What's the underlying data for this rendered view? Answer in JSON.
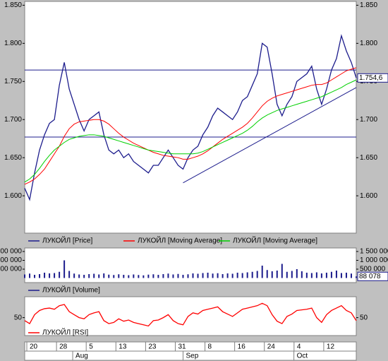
{
  "chart_data": [
    {
      "type": "line",
      "ylim": [
        1551,
        1855
      ],
      "yticks": [
        {
          "value": 1600,
          "label": "1.600"
        },
        {
          "value": 1650,
          "label": "1.650"
        },
        {
          "value": 1700,
          "label": "1.700"
        },
        {
          "value": 1750,
          "label": "1.750"
        },
        {
          "value": 1800,
          "label": "1.800"
        },
        {
          "value": 1850,
          "label": "1.850"
        }
      ],
      "series": [
        {
          "name": "ЛУКОЙЛ [Price]",
          "color": "#1c1c8c",
          "values": [
            1610,
            1595,
            1630,
            1660,
            1680,
            1695,
            1700,
            1745,
            1775,
            1740,
            1720,
            1700,
            1685,
            1700,
            1705,
            1710,
            1680,
            1660,
            1655,
            1660,
            1650,
            1655,
            1645,
            1640,
            1635,
            1630,
            1640,
            1640,
            1650,
            1660,
            1650,
            1640,
            1635,
            1650,
            1660,
            1665,
            1680,
            1690,
            1705,
            1715,
            1710,
            1705,
            1700,
            1710,
            1725,
            1730,
            1745,
            1760,
            1800,
            1795,
            1760,
            1720,
            1705,
            1720,
            1730,
            1750,
            1755,
            1760,
            1770,
            1740,
            1720,
            1740,
            1765,
            1780,
            1810,
            1790,
            1775,
            1754.6
          ],
          "value_labels": [
            null,
            null,
            null,
            null,
            null,
            null,
            null,
            null,
            null,
            null,
            null,
            null,
            null,
            null,
            null,
            null,
            null,
            null,
            null,
            null,
            null,
            null,
            null,
            null,
            null,
            null,
            null,
            null,
            null,
            null,
            null,
            null,
            null,
            null,
            null,
            null,
            null,
            null,
            null,
            null,
            null,
            null,
            null,
            null,
            null,
            null,
            null,
            null,
            null,
            null,
            null,
            null,
            null,
            null,
            null,
            null,
            null,
            null,
            null,
            null,
            null,
            null,
            null,
            null,
            null,
            null,
            null,
            "1.754,6"
          ]
        },
        {
          "name": "ЛУКОЙЛ [Moving Average]",
          "color": "#ff0000",
          "values": [
            1615,
            1618,
            1622,
            1628,
            1635,
            1645,
            1655,
            1665,
            1678,
            1688,
            1694,
            1697,
            1698,
            1699,
            1700,
            1700,
            1698,
            1694,
            1688,
            1682,
            1677,
            1673,
            1669,
            1666,
            1663,
            1660,
            1657,
            1655,
            1653,
            1652,
            1651,
            1650,
            1648,
            1648,
            1650,
            1652,
            1655,
            1659,
            1664,
            1669,
            1674,
            1678,
            1682,
            1686,
            1690,
            1695,
            1702,
            1710,
            1718,
            1724,
            1728,
            1731,
            1733,
            1735,
            1737,
            1739,
            1741,
            1743,
            1745,
            1746,
            1746,
            1748,
            1752,
            1756,
            1760,
            1764,
            1766,
            1768
          ]
        },
        {
          "name": "ЛУКОЙЛ [Moving Average]",
          "color": "#00d000",
          "values": [
            1618,
            1622,
            1628,
            1636,
            1645,
            1653,
            1660,
            1665,
            1670,
            1674,
            1676,
            1678,
            1679,
            1680,
            1680,
            1679,
            1678,
            1676,
            1674,
            1672,
            1670,
            1668,
            1666,
            1664,
            1662,
            1660,
            1659,
            1658,
            1657,
            1656,
            1655,
            1655,
            1655,
            1655,
            1655,
            1656,
            1658,
            1661,
            1664,
            1667,
            1670,
            1673,
            1676,
            1679,
            1682,
            1686,
            1691,
            1697,
            1702,
            1706,
            1709,
            1712,
            1714,
            1716,
            1718,
            1720,
            1722,
            1724,
            1726,
            1728,
            1730,
            1733,
            1736,
            1739,
            1742,
            1746,
            1749,
            1752
          ]
        }
      ],
      "hlines": [
        1765,
        1677
      ],
      "trendline": {
        "x": [
          32,
          67
        ],
        "y": [
          1617,
          1742
        ]
      }
    },
    {
      "type": "bar",
      "ylim": [
        -260000,
        1700000
      ],
      "yticks": [
        {
          "value": 500000,
          "label": "500 000"
        },
        {
          "value": 1000000,
          "label": "1 000 000"
        },
        {
          "value": 1500000,
          "label": "1 500 000"
        }
      ],
      "series": [
        {
          "name": "ЛУКОЙЛ [Volume]",
          "color": "#1c1c8c",
          "values": [
            200000,
            250000,
            180000,
            220000,
            300000,
            260000,
            280000,
            350000,
            1000000,
            400000,
            250000,
            200000,
            180000,
            220000,
            240000,
            200000,
            260000,
            190000,
            170000,
            210000,
            180000,
            160000,
            200000,
            170000,
            150000,
            190000,
            210000,
            180000,
            220000,
            250000,
            200000,
            230000,
            180000,
            210000,
            260000,
            240000,
            280000,
            300000,
            250000,
            270000,
            220000,
            260000,
            240000,
            300000,
            280000,
            320000,
            350000,
            400000,
            700000,
            450000,
            380000,
            420000,
            800000,
            350000,
            400000,
            500000,
            380000,
            300000,
            280000,
            320000,
            260000,
            300000,
            350000,
            420000,
            280000,
            300000,
            250000,
            88078
          ],
          "value_labels": [
            null,
            null,
            null,
            null,
            null,
            null,
            null,
            null,
            null,
            null,
            null,
            null,
            null,
            null,
            null,
            null,
            null,
            null,
            null,
            null,
            null,
            null,
            null,
            null,
            null,
            null,
            null,
            null,
            null,
            null,
            null,
            null,
            null,
            null,
            null,
            null,
            null,
            null,
            null,
            null,
            null,
            null,
            null,
            null,
            null,
            null,
            null,
            null,
            null,
            null,
            null,
            null,
            null,
            null,
            null,
            null,
            null,
            null,
            null,
            null,
            null,
            null,
            null,
            null,
            null,
            null,
            null,
            "88 078"
          ]
        }
      ]
    },
    {
      "type": "line",
      "ylim": [
        20,
        85
      ],
      "yticks": [
        50
      ],
      "series": [
        {
          "name": "ЛУКОЙЛ [RSI]",
          "color": "#ff0000",
          "values": [
            45,
            40,
            55,
            62,
            65,
            66,
            64,
            70,
            72,
            60,
            55,
            50,
            48,
            55,
            58,
            60,
            45,
            40,
            42,
            48,
            44,
            46,
            42,
            40,
            38,
            36,
            45,
            46,
            50,
            55,
            45,
            40,
            38,
            52,
            58,
            56,
            62,
            64,
            66,
            68,
            60,
            56,
            52,
            58,
            64,
            66,
            68,
            70,
            74,
            70,
            55,
            44,
            40,
            52,
            56,
            62,
            63,
            64,
            66,
            50,
            42,
            55,
            62,
            66,
            70,
            62,
            58,
            45
          ]
        }
      ]
    }
  ],
  "x_axis": {
    "xlim": [
      0,
      67
    ],
    "xticks": [
      {
        "value": 1,
        "label": "20"
      },
      {
        "value": 7,
        "label": "28"
      },
      {
        "value": 13,
        "label": "5"
      },
      {
        "value": 19,
        "label": "13"
      },
      {
        "value": 25,
        "label": "23"
      },
      {
        "value": 31,
        "label": "31"
      },
      {
        "value": 37,
        "label": "8"
      },
      {
        "value": 43,
        "label": "16"
      },
      {
        "value": 49,
        "label": "24"
      },
      {
        "value": 55,
        "label": "4"
      },
      {
        "value": 61,
        "label": "12"
      }
    ],
    "months": [
      {
        "value": 9.7,
        "label": "Aug"
      },
      {
        "value": 32,
        "label": "Sep"
      },
      {
        "value": 54.4,
        "label": "Oct"
      }
    ]
  }
}
